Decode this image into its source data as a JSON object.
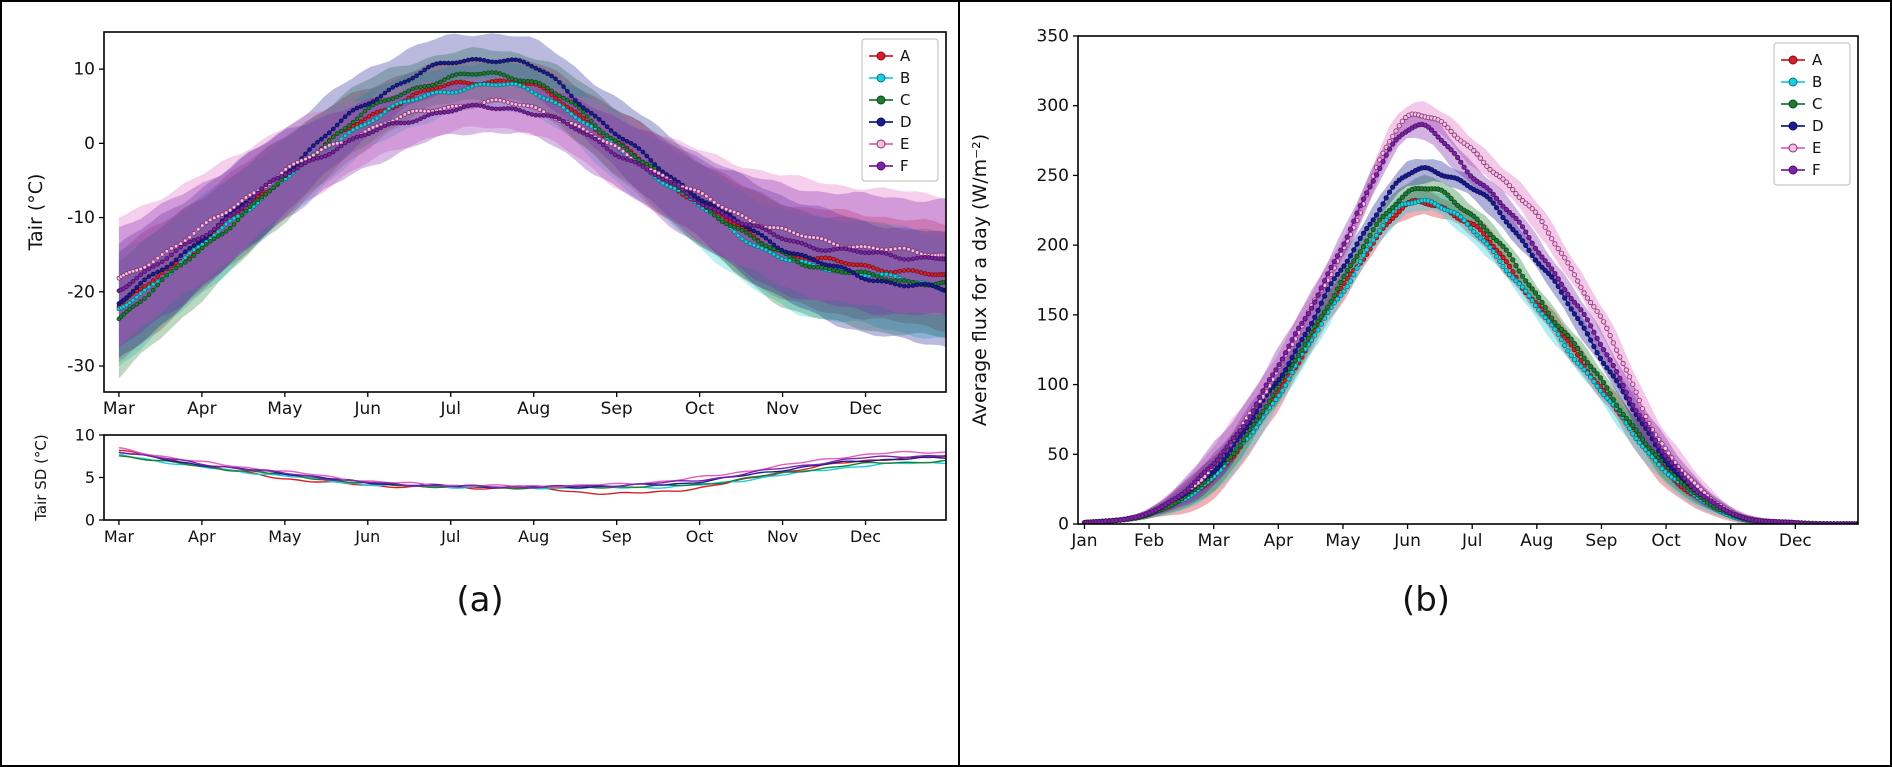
{
  "figure": {
    "background": "#ffffff",
    "border_color": "#000000",
    "captions": {
      "a": "(a)",
      "b": "(b)"
    }
  },
  "legend_labels": [
    "A",
    "B",
    "C",
    "D",
    "E",
    "F"
  ],
  "chart_data": [
    {
      "id": "tair",
      "type": "line",
      "ylabel": "Tair (°C)",
      "xlabel": "",
      "xlim": [
        -0.18,
        9.97
      ],
      "ylim": [
        -33.5,
        15
      ],
      "y_ticks": [
        -30,
        -20,
        -10,
        0,
        10
      ],
      "x_tick_positions": [
        0,
        1,
        2,
        3,
        4,
        5,
        6,
        7,
        8,
        9
      ],
      "x_tick_labels": [
        "Mar",
        "Apr",
        "May",
        "Jun",
        "Jul",
        "Aug",
        "Sep",
        "Oct",
        "Nov",
        "Dec"
      ],
      "legend": true,
      "legend_position": "upper right",
      "grid": false,
      "jitter": 0.45,
      "band_opacity": 0.3,
      "x": [
        0,
        1,
        2,
        3,
        4,
        5,
        6,
        7,
        8,
        9,
        9.97
      ],
      "series": [
        {
          "name": "A",
          "color": "#d81e26",
          "values": [
            -22,
            -13.5,
            -4.5,
            3.5,
            7.8,
            7.6,
            0,
            -8,
            -14.5,
            -16.5,
            -18
          ],
          "band": [
            7.5,
            6.5,
            5.5,
            4,
            3.2,
            3.2,
            4.5,
            5.5,
            6.5,
            7,
            7
          ]
        },
        {
          "name": "B",
          "color": "#17cfe0",
          "values": [
            -22.5,
            -13.8,
            -4.8,
            3,
            7.2,
            7,
            -0.5,
            -8.5,
            -15.5,
            -17.5,
            -19.5
          ],
          "band": [
            7.5,
            6.5,
            5.5,
            4,
            3.2,
            3.2,
            4.5,
            5.5,
            6.5,
            7,
            7
          ]
        },
        {
          "name": "C",
          "color": "#1d7d32",
          "values": [
            -23.5,
            -14.2,
            -4.8,
            4.3,
            8.8,
            8.3,
            0.3,
            -8,
            -15,
            -17.8,
            -19
          ],
          "band": [
            8,
            6.8,
            5.6,
            4.2,
            3.4,
            3.4,
            4.6,
            5.6,
            6.8,
            7.2,
            7.2
          ]
        },
        {
          "name": "D",
          "color": "#191c94",
          "values": [
            -21.5,
            -12.8,
            -3.8,
            5.5,
            10.8,
            10.2,
            1.2,
            -7.2,
            -14,
            -18,
            -19.8
          ],
          "band": [
            7.8,
            6.8,
            5.8,
            4.5,
            3.6,
            3.6,
            4.8,
            5.8,
            7,
            7.5,
            7.5
          ]
        },
        {
          "name": "E",
          "color": "#e060c0",
          "marker_fill": "#f6bce6",
          "values": [
            -18.5,
            -11.5,
            -3.8,
            1.8,
            5,
            4.8,
            -0.8,
            -7,
            -11.8,
            -14,
            -15
          ],
          "band": [
            8.5,
            7.2,
            6,
            4.5,
            3.5,
            3.5,
            5,
            6,
            7.5,
            8,
            8
          ]
        },
        {
          "name": "F",
          "color": "#7d22a8",
          "values": [
            -19.5,
            -12.5,
            -4.3,
            1.2,
            4.4,
            4.2,
            -1.2,
            -7.8,
            -12.8,
            -14.8,
            -15.5
          ],
          "band": [
            8.2,
            7,
            5.8,
            4.4,
            3.4,
            3.4,
            4.8,
            5.8,
            7.2,
            7.8,
            7.8
          ]
        }
      ]
    },
    {
      "id": "tair_sd",
      "type": "line",
      "ylabel": "Tair SD (°C)",
      "xlabel": "",
      "xlim": [
        -0.18,
        9.97
      ],
      "ylim": [
        0,
        10
      ],
      "y_ticks": [
        0,
        5,
        10
      ],
      "x_tick_positions": [
        0,
        1,
        2,
        3,
        4,
        5,
        6,
        7,
        8,
        9
      ],
      "x_tick_labels": [
        "Mar",
        "Apr",
        "May",
        "Jun",
        "Jul",
        "Aug",
        "Sep",
        "Oct",
        "Nov",
        "Dec"
      ],
      "legend": false,
      "grid": false,
      "jitter": 0.15,
      "x": [
        0,
        1,
        2,
        3,
        4,
        5,
        6,
        7,
        8,
        9,
        9.97
      ],
      "series": [
        {
          "name": "A",
          "color": "#d81e26",
          "values": [
            8.2,
            6.4,
            4.9,
            4.1,
            3.8,
            3.7,
            3.1,
            3.8,
            5.6,
            7.0,
            7.4
          ]
        },
        {
          "name": "B",
          "color": "#17cfe0",
          "values": [
            7.7,
            6.2,
            5.2,
            4.2,
            3.9,
            3.8,
            3.8,
            4.1,
            5.3,
            6.4,
            6.8
          ]
        },
        {
          "name": "C",
          "color": "#1d7d32",
          "values": [
            7.6,
            6.3,
            5.3,
            4.3,
            3.9,
            3.8,
            3.9,
            4.2,
            5.5,
            6.6,
            6.9
          ]
        },
        {
          "name": "D",
          "color": "#191c94",
          "values": [
            8.0,
            6.5,
            5.5,
            4.4,
            4.0,
            3.9,
            4.0,
            4.5,
            5.9,
            7.0,
            7.3
          ]
        },
        {
          "name": "E",
          "color": "#e060c0",
          "values": [
            8.4,
            6.8,
            5.7,
            4.6,
            4.1,
            4.0,
            4.2,
            5.0,
            6.4,
            7.7,
            8.0
          ]
        },
        {
          "name": "F",
          "color": "#7d22a8",
          "values": [
            8.1,
            6.6,
            5.5,
            4.4,
            4.0,
            3.9,
            4.1,
            4.7,
            6.1,
            7.3,
            7.6
          ]
        }
      ]
    },
    {
      "id": "flux",
      "type": "line",
      "ylabel": "Average flux for a day (W/m⁻²)",
      "xlabel": "",
      "xlim": [
        -0.1,
        11.97
      ],
      "ylim": [
        0,
        350
      ],
      "y_ticks": [
        0,
        50,
        100,
        150,
        200,
        250,
        300,
        350
      ],
      "x_tick_positions": [
        0,
        1,
        2,
        3,
        4,
        5,
        6,
        7,
        8,
        9,
        10,
        11
      ],
      "x_tick_labels": [
        "Jan",
        "Feb",
        "Mar",
        "Apr",
        "May",
        "Jun",
        "Jul",
        "Aug",
        "Sep",
        "Oct",
        "Nov",
        "Dec"
      ],
      "legend": true,
      "legend_position": "upper right",
      "grid": false,
      "jitter": 2.5,
      "jitter_damp": 60,
      "band_opacity": 0.35,
      "x": [
        0,
        1,
        2,
        3,
        4,
        5,
        6,
        7,
        8,
        9,
        10,
        11,
        11.97
      ],
      "series": [
        {
          "name": "A",
          "color": "#d81e26",
          "values": [
            1,
            7,
            34,
            95,
            170,
            228,
            214,
            158,
            98,
            38,
            6,
            1,
            0
          ],
          "band": [
            1,
            3,
            16,
            12,
            9,
            8,
            8,
            8,
            9,
            12,
            4,
            1,
            0
          ]
        },
        {
          "name": "B",
          "color": "#17cfe0",
          "values": [
            1,
            7,
            34,
            93,
            168,
            231,
            211,
            155,
            95,
            38,
            6,
            1,
            0
          ],
          "band": [
            1,
            3,
            12,
            10,
            8,
            8,
            8,
            8,
            8,
            10,
            3,
            1,
            0
          ]
        },
        {
          "name": "C",
          "color": "#1d7d32",
          "values": [
            1,
            7,
            36,
            98,
            175,
            238,
            222,
            164,
            102,
            41,
            7,
            1,
            0
          ],
          "band": [
            1,
            3,
            12,
            10,
            8,
            8,
            8,
            8,
            8,
            10,
            3,
            1,
            0
          ]
        },
        {
          "name": "D",
          "color": "#191c94",
          "values": [
            1,
            8,
            39,
            104,
            184,
            250,
            241,
            190,
            120,
            46,
            8,
            1,
            0
          ],
          "band": [
            1,
            3,
            12,
            10,
            9,
            8,
            8,
            8,
            8,
            10,
            3,
            1,
            0
          ]
        },
        {
          "name": "E",
          "color": "#e060c0",
          "marker_fill": "#f6bce6",
          "values": [
            1,
            8,
            42,
            112,
            197,
            292,
            267,
            220,
            146,
            53,
            9,
            1,
            0
          ],
          "band": [
            1,
            3,
            14,
            12,
            10,
            9,
            9,
            10,
            10,
            13,
            4,
            1,
            0
          ]
        },
        {
          "name": "F",
          "color": "#7d22a8",
          "values": [
            1,
            8,
            43,
            113,
            200,
            284,
            251,
            198,
            128,
            48,
            8,
            1,
            0
          ],
          "band": [
            1,
            3,
            14,
            12,
            10,
            9,
            9,
            9,
            9,
            12,
            4,
            1,
            0
          ]
        }
      ]
    }
  ]
}
